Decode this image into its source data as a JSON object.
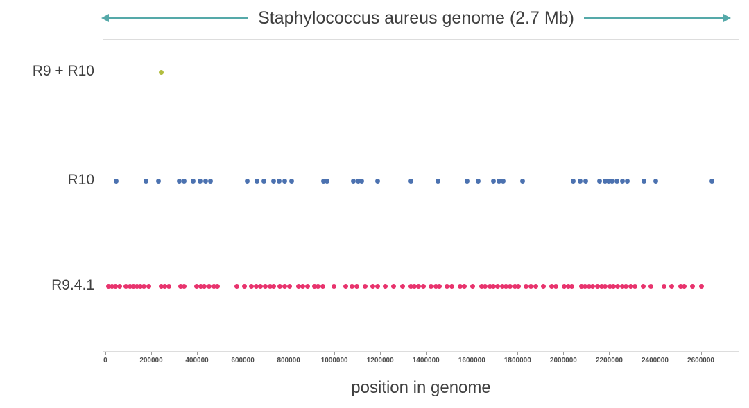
{
  "colors": {
    "arrow": "#55a9a9",
    "title_text": "#3f3f3f",
    "tick_text": "#4d4d4d",
    "plot_border": "#dddddd"
  },
  "chart_data": {
    "type": "scatter",
    "subtype": "strip-plot",
    "title": "Staphylococcus aureus genome (2.7 Mb)",
    "xlabel": "position in genome",
    "ylabel": "",
    "grid": false,
    "legend_position": "none",
    "xlim": [
      -12000,
      2762000
    ],
    "x_ticks": [
      0,
      200000,
      400000,
      600000,
      800000,
      1000000,
      1200000,
      1400000,
      1600000,
      1800000,
      2000000,
      2200000,
      2400000,
      2600000
    ],
    "categories": [
      "R9 + R10",
      "R10",
      "R9.4.1"
    ],
    "series": [
      {
        "name": "R9 + R10",
        "color": "#b2bd3f",
        "positions": [
          240000
        ]
      },
      {
        "name": "R10",
        "color": "#4c72b0",
        "positions": [
          45000,
          175000,
          230000,
          320000,
          340000,
          380000,
          410000,
          435000,
          455000,
          615000,
          660000,
          690000,
          730000,
          755000,
          780000,
          810000,
          950000,
          965000,
          1080000,
          1100000,
          1115000,
          1185000,
          1330000,
          1450000,
          1575000,
          1625000,
          1690000,
          1715000,
          1735000,
          1820000,
          2040000,
          2070000,
          2095000,
          2155000,
          2180000,
          2195000,
          2210000,
          2230000,
          2255000,
          2275000,
          2350000,
          2400000,
          2645000
        ]
      },
      {
        "name": "R9.4.1",
        "color": "#e8336d",
        "positions": [
          10000,
          25000,
          40000,
          60000,
          85000,
          105000,
          120000,
          135000,
          150000,
          165000,
          185000,
          240000,
          255000,
          275000,
          325000,
          340000,
          395000,
          415000,
          430000,
          450000,
          470000,
          485000,
          570000,
          605000,
          635000,
          655000,
          675000,
          695000,
          715000,
          730000,
          760000,
          780000,
          800000,
          840000,
          860000,
          880000,
          910000,
          925000,
          945000,
          995000,
          1045000,
          1075000,
          1095000,
          1130000,
          1165000,
          1185000,
          1220000,
          1255000,
          1295000,
          1330000,
          1345000,
          1365000,
          1385000,
          1420000,
          1440000,
          1455000,
          1490000,
          1510000,
          1545000,
          1565000,
          1600000,
          1640000,
          1655000,
          1675000,
          1690000,
          1710000,
          1730000,
          1745000,
          1765000,
          1785000,
          1800000,
          1835000,
          1855000,
          1875000,
          1910000,
          1945000,
          1965000,
          2000000,
          2020000,
          2035000,
          2075000,
          2090000,
          2110000,
          2125000,
          2145000,
          2165000,
          2180000,
          2200000,
          2215000,
          2235000,
          2255000,
          2270000,
          2290000,
          2310000,
          2345000,
          2380000,
          2435000,
          2470000,
          2510000,
          2525000,
          2560000,
          2600000
        ]
      }
    ]
  }
}
